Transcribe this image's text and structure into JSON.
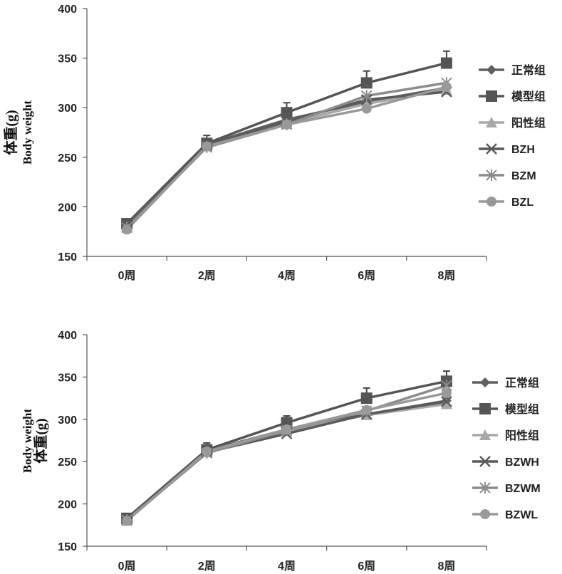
{
  "charts": [
    {
      "chart_data": {
        "type": "line",
        "categories": [
          "0周",
          "2周",
          "4周",
          "6周",
          "8周"
        ],
        "ylabel_cn": "体重(g)",
        "ylabel_en": "Body weight",
        "ylim": [
          150,
          400
        ],
        "yticks": [
          "150",
          "200",
          "250",
          "300",
          "350",
          "400"
        ],
        "grid": false,
        "legend_position": "right",
        "series": [
          {
            "name": "正常组",
            "values": [
              183,
              263,
              288,
              306,
              320
            ],
            "color": "#606060",
            "marker": "diamond"
          },
          {
            "name": "模型组",
            "values": [
              183,
              264,
              295,
              325,
              345
            ],
            "color": "#555555",
            "marker": "square",
            "error": [
              4,
              8,
              10,
              12,
              12
            ]
          },
          {
            "name": "阳性组",
            "values": [
              180,
              261,
              284,
              304,
              318
            ],
            "color": "#a8a8a8",
            "marker": "triangle"
          },
          {
            "name": "BZH",
            "values": [
              182,
              262,
              286,
              308,
              316
            ],
            "color": "#5a5a5a",
            "marker": "x"
          },
          {
            "name": "BZM",
            "values": [
              179,
              260,
              283,
              312,
              325
            ],
            "color": "#8c8c8c",
            "marker": "star"
          },
          {
            "name": "BZL",
            "values": [
              177,
              261,
              283,
              299,
              321
            ],
            "color": "#999999",
            "marker": "circle"
          }
        ]
      }
    },
    {
      "chart_data": {
        "type": "line",
        "categories": [
          "0周",
          "2周",
          "4周",
          "6周",
          "8周"
        ],
        "ylabel_cn": "体重(g)",
        "ylabel_en": "Body weight",
        "ylim": [
          150,
          400
        ],
        "yticks": [
          "150",
          "200",
          "250",
          "300",
          "350",
          "400"
        ],
        "grid": false,
        "legend_position": "right",
        "series": [
          {
            "name": "正常组",
            "values": [
              183,
              263,
              288,
              306,
              322
            ],
            "color": "#606060",
            "marker": "diamond"
          },
          {
            "name": "模型组",
            "values": [
              183,
              264,
              296,
              325,
              345
            ],
            "color": "#555555",
            "marker": "square",
            "error": [
              4,
              8,
              8,
              12,
              12
            ]
          },
          {
            "name": "阳性组",
            "values": [
              180,
              261,
              286,
              305,
              318
            ],
            "color": "#a8a8a8",
            "marker": "triangle"
          },
          {
            "name": "BZWH",
            "values": [
              182,
              261,
              283,
              306,
              321
            ],
            "color": "#5a5a5a",
            "marker": "x"
          },
          {
            "name": "BZWM",
            "values": [
              181,
              260,
              287,
              310,
              340
            ],
            "color": "#8c8c8c",
            "marker": "star"
          },
          {
            "name": "BZWL",
            "values": [
              180,
              262,
              288,
              311,
              331
            ],
            "color": "#999999",
            "marker": "circle"
          }
        ]
      }
    }
  ]
}
